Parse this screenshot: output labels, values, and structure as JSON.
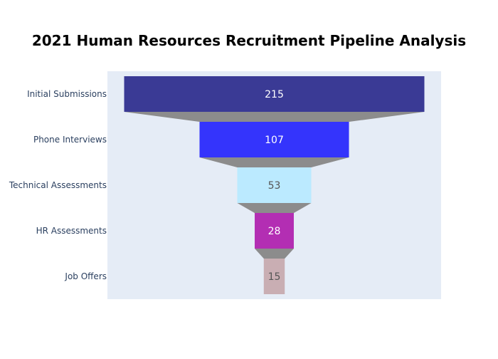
{
  "chart_data": {
    "type": "funnel",
    "title": "2021 Human Resources Recruitment Pipeline Analysis",
    "categories": [
      "Initial Submissions",
      "Phone Interviews",
      "Technical Assessments",
      "HR Assessments",
      "Job Offers"
    ],
    "values": [
      215,
      107,
      53,
      28,
      15
    ],
    "colors": [
      "#3a3a95",
      "#3434fc",
      "#bbeaff",
      "#b32eb3",
      "#c9aeb3"
    ],
    "label_colors": [
      "#ffffff",
      "#ffffff",
      "#555555",
      "#ffffff",
      "#555555"
    ],
    "connector_color": "#8c8c8c",
    "plot_background": "#e5ecf6"
  }
}
